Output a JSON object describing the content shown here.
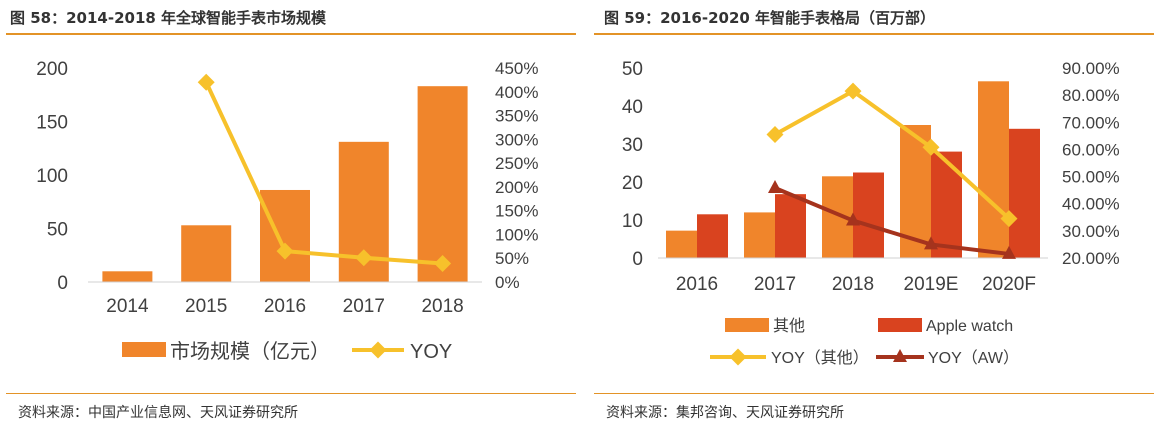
{
  "colors": {
    "bar_orange": "#f0852b",
    "bar_red": "#d9431f",
    "line_yellow": "#f7c12b",
    "line_darkred": "#a5331d",
    "rule": "#e39327"
  },
  "chart_data": [
    {
      "type": "bar",
      "title": "图 58：2014-2018 年全球智能手表市场规模",
      "source": "资料来源：中国产业信息网、天风证券研究所",
      "categories": [
        "2014",
        "2015",
        "2016",
        "2017",
        "2018"
      ],
      "series": [
        {
          "name": "市场规模（亿元）",
          "type": "bar",
          "axis": "left",
          "values": [
            10,
            53,
            86,
            131,
            183
          ]
        },
        {
          "name": "YOY",
          "type": "line",
          "axis": "right",
          "values": [
            null,
            420,
            65,
            51,
            39
          ]
        }
      ],
      "left_axis": {
        "min": 0,
        "max": 200,
        "ticks": [
          "0",
          "50",
          "100",
          "150",
          "200"
        ]
      },
      "right_axis": {
        "min": 0,
        "max": 450,
        "ticks": [
          "0%",
          "50%",
          "100%",
          "150%",
          "200%",
          "250%",
          "300%",
          "350%",
          "400%",
          "450%"
        ]
      },
      "legend": "bottom",
      "grid": false
    },
    {
      "type": "bar",
      "title": "图 59：2016-2020 年智能手表格局（百万部）",
      "source": "资料来源：集邦咨询、天风证券研究所",
      "categories": [
        "2016",
        "2017",
        "2018",
        "2019E",
        "2020F"
      ],
      "series": [
        {
          "name": "其他",
          "type": "bar",
          "axis": "left",
          "values": [
            7.2,
            12,
            21.5,
            35,
            46.5
          ]
        },
        {
          "name": "Apple watch",
          "type": "bar",
          "axis": "left",
          "values": [
            11.5,
            16.8,
            22.5,
            28,
            34
          ]
        },
        {
          "name": "YOY（其他）",
          "type": "line",
          "axis": "right",
          "values": [
            null,
            65.5,
            81.5,
            60.8,
            34.5
          ]
        },
        {
          "name": "YOY（AW）",
          "type": "line",
          "axis": "right",
          "values": [
            null,
            45.8,
            33.8,
            25.0,
            21.5
          ]
        }
      ],
      "left_axis": {
        "min": 0,
        "max": 50,
        "ticks": [
          "0",
          "10",
          "20",
          "30",
          "40",
          "50"
        ]
      },
      "right_axis": {
        "min": 20,
        "max": 90,
        "ticks": [
          "20.00%",
          "30.00%",
          "40.00%",
          "50.00%",
          "60.00%",
          "70.00%",
          "80.00%",
          "90.00%"
        ]
      },
      "legend": "bottom",
      "grid": false
    }
  ]
}
